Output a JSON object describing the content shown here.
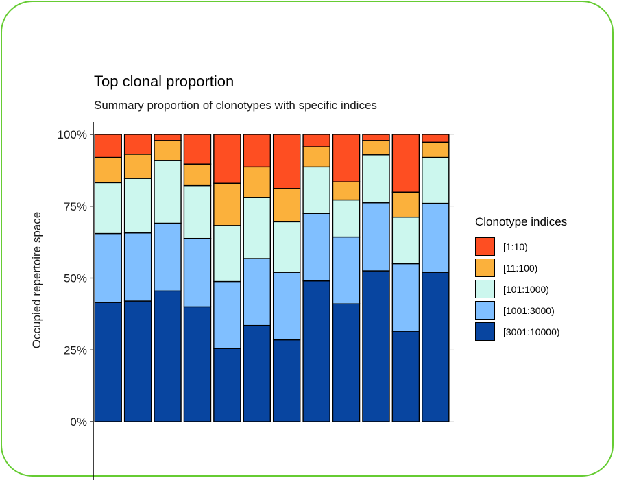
{
  "chart_data": {
    "type": "bar",
    "stacked": true,
    "title": "Top clonal proportion",
    "subtitle": "Summary proportion of clonotypes with specific indices",
    "xlabel": "",
    "ylabel": "Occupied repertoire space",
    "ylim": [
      0,
      1
    ],
    "yticks": [
      {
        "value": 0,
        "label": "0%"
      },
      {
        "value": 0.25,
        "label": "25%"
      },
      {
        "value": 0.5,
        "label": "50%"
      },
      {
        "value": 0.75,
        "label": "75%"
      },
      {
        "value": 1,
        "label": "100%"
      }
    ],
    "legend": {
      "title": "Clonotype indices",
      "position": "right"
    },
    "series": [
      {
        "name": "[3001:10000)",
        "color": "#0845a0",
        "values": [
          0.415,
          0.42,
          0.455,
          0.4,
          0.255,
          0.335,
          0.285,
          0.49,
          0.41,
          0.525,
          0.315,
          0.52
        ]
      },
      {
        "name": "[1001:3000)",
        "color": "#80bfff",
        "values": [
          0.24,
          0.237,
          0.236,
          0.238,
          0.233,
          0.233,
          0.235,
          0.235,
          0.233,
          0.237,
          0.235,
          0.24
        ]
      },
      {
        "name": "[101:1000)",
        "color": "#ccf7ee",
        "values": [
          0.177,
          0.19,
          0.218,
          0.184,
          0.195,
          0.212,
          0.176,
          0.162,
          0.129,
          0.167,
          0.162,
          0.16
        ]
      },
      {
        "name": "[11:100)",
        "color": "#fbb13c",
        "values": [
          0.088,
          0.084,
          0.07,
          0.075,
          0.147,
          0.107,
          0.116,
          0.07,
          0.063,
          0.05,
          0.087,
          0.053
        ]
      },
      {
        "name": "[1:10)",
        "color": "#fe4e22",
        "values": [
          0.08,
          0.069,
          0.021,
          0.103,
          0.17,
          0.113,
          0.188,
          0.043,
          0.165,
          0.021,
          0.201,
          0.027
        ]
      }
    ]
  }
}
